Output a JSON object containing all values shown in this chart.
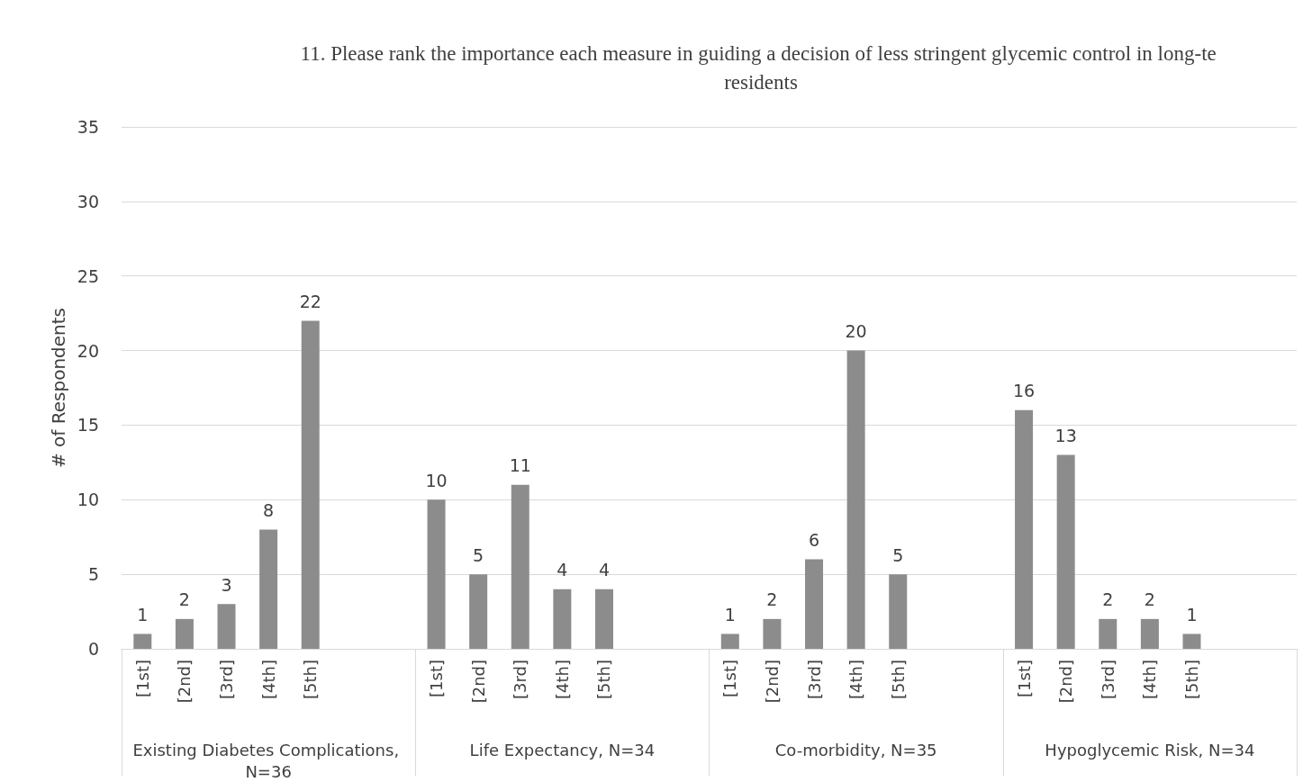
{
  "chart_data": {
    "type": "bar",
    "title": "11. Please rank the importance each measure in guiding a decision of less stringent glycemic control in long-te residents",
    "ylabel": "# of Respondents",
    "categories": [
      "[1st]",
      "[2nd]",
      "[3rd]",
      "[4th]",
      "[5th]",
      null,
      null,
      "[1st]",
      "[2nd]",
      "[3rd]",
      "[4th]",
      "[5th]",
      null,
      null,
      "[1st]",
      "[2nd]",
      "[3rd]",
      "[4th]",
      "[5th]",
      null,
      null,
      "[1st]",
      "[2nd]",
      "[3rd]",
      "[4th]",
      "[5th]",
      null,
      null
    ],
    "values": [
      1,
      2,
      3,
      8,
      22,
      null,
      null,
      10,
      5,
      11,
      4,
      4,
      null,
      null,
      1,
      2,
      6,
      20,
      5,
      null,
      null,
      16,
      13,
      2,
      2,
      1,
      null,
      null
    ],
    "color": "#8c8c8c",
    "annotations": [
      "Existing Diabetes Complications, N=36",
      "Life Expectancy, N=34",
      "Co-morbidity, N=35",
      "Hypoglycemic Risk, N=34"
    ],
    "ylim": [
      0,
      35
    ],
    "yticks": [
      0,
      5,
      10,
      15,
      20,
      25,
      30,
      35
    ],
    "grid": "y",
    "data_labels": true
  }
}
